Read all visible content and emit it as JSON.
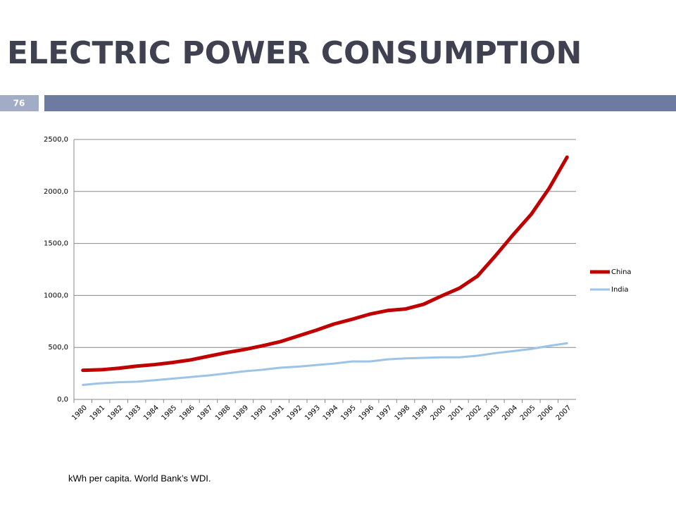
{
  "slide": {
    "title": "ELECTRIC POWER CONSUMPTION",
    "number": "76",
    "footnote": "kWh per capita. World Bank’s WDI."
  },
  "chart_data": {
    "type": "line",
    "categories": [
      "1980",
      "1981",
      "1982",
      "1983",
      "1984",
      "1985",
      "1986",
      "1987",
      "1988",
      "1989",
      "1990",
      "1991",
      "1992",
      "1993",
      "1994",
      "1995",
      "1996",
      "1997",
      "1998",
      "1999",
      "2000",
      "2001",
      "2002",
      "2003",
      "2004",
      "2005",
      "2006",
      "2007"
    ],
    "series": [
      {
        "name": "China",
        "color": "#c00000",
        "values": [
          280,
          285,
          300,
          320,
          335,
          355,
          380,
          415,
          450,
          480,
          515,
          555,
          610,
          665,
          725,
          770,
          820,
          855,
          870,
          915,
          995,
          1070,
          1185,
          1380,
          1585,
          1780,
          2030,
          2330
        ]
      },
      {
        "name": "India",
        "color": "#9dc3e6",
        "values": [
          140,
          155,
          165,
          170,
          185,
          200,
          215,
          230,
          250,
          270,
          285,
          305,
          315,
          330,
          345,
          365,
          365,
          385,
          395,
          400,
          405,
          405,
          420,
          445,
          465,
          485,
          515,
          540
        ]
      }
    ],
    "ylim": [
      0,
      2500
    ],
    "yticks": [
      {
        "value": 0,
        "label": "0,0"
      },
      {
        "value": 500,
        "label": "500,0"
      },
      {
        "value": 1000,
        "label": "1000,0"
      },
      {
        "value": 1500,
        "label": "1500,0"
      },
      {
        "value": 2000,
        "label": "2000,0"
      },
      {
        "value": 2500,
        "label": "2500,0"
      }
    ],
    "grid": true,
    "legend": "right"
  }
}
